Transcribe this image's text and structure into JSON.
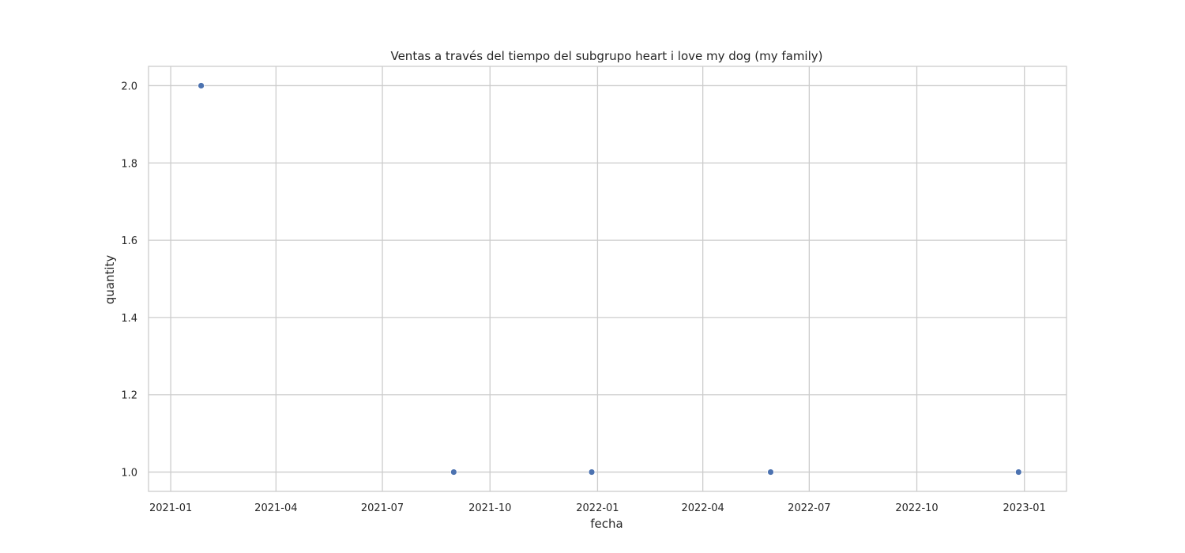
{
  "chart_data": {
    "type": "scatter",
    "title": "Ventas a través del tiempo del subgrupo heart i love my dog (my family)",
    "xlabel": "fecha",
    "ylabel": "quantity",
    "x_type": "date",
    "xlim": [
      "2020-12-13",
      "2023-02-06"
    ],
    "ylim": [
      0.95,
      2.05
    ],
    "x_ticks": [
      "2021-01",
      "2021-04",
      "2021-07",
      "2021-10",
      "2022-01",
      "2022-04",
      "2022-07",
      "2022-10",
      "2023-01"
    ],
    "y_ticks": [
      "1.0",
      "1.2",
      "1.4",
      "1.6",
      "1.8",
      "2.0"
    ],
    "grid": true,
    "legend": "none",
    "point_color": "#4c72b0",
    "grid_color": "#cccccc",
    "series": [
      {
        "x": [
          "2021-01-27",
          "2021-08-31",
          "2021-12-27",
          "2022-05-29",
          "2022-12-27"
        ],
        "y": [
          2,
          1,
          1,
          1,
          1
        ]
      }
    ]
  }
}
